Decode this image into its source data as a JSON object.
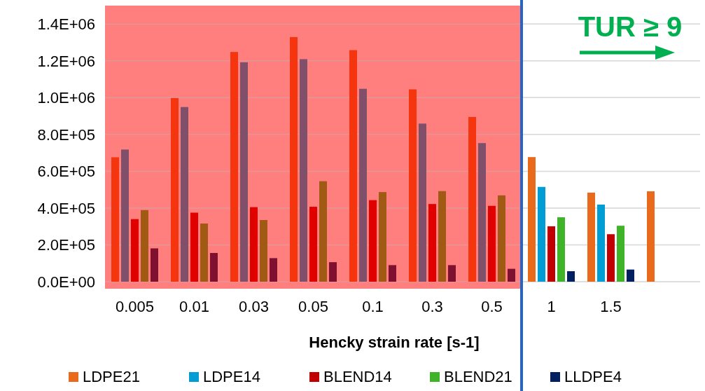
{
  "chart_data": {
    "type": "bar",
    "xlabel": "Hencky strain rate [s-1]",
    "categories": [
      "0.005",
      "0.01",
      "0.03",
      "0.05",
      "0.1",
      "0.3",
      "0.5",
      "1",
      "1.5",
      null
    ],
    "series": [
      {
        "name": "LDPE21",
        "color": "#e86a1a",
        "colors": [
          "#f4350d",
          "#f4350d",
          "#f4350d",
          "#f4350d",
          "#f4350d",
          "#f4350d",
          "#f4350d",
          "#e86a1a",
          "#e86a1a",
          "#e86a1a"
        ],
        "values": [
          676000,
          998000,
          1248000,
          1329000,
          1258000,
          1045000,
          895000,
          677000,
          484000,
          491000
        ]
      },
      {
        "name": "LDPE14",
        "color": "#009dd4",
        "colors": [
          "#804f6a",
          "#804f6a",
          "#804f6a",
          "#804f6a",
          "#804f6a",
          "#804f6a",
          "#804f6a",
          "#009dd4",
          "#009dd4",
          null
        ],
        "values": [
          718000,
          949000,
          1192000,
          1209000,
          1048000,
          859000,
          753000,
          515000,
          419000,
          null
        ]
      },
      {
        "name": "BLEND14",
        "color": "#c00000",
        "colors": [
          "#e00000",
          "#e00000",
          "#e00000",
          "#e00000",
          "#e00000",
          "#e00000",
          "#e00000",
          "#c00000",
          "#c00000",
          null
        ],
        "values": [
          340000,
          375000,
          405000,
          407000,
          443000,
          422000,
          412000,
          301000,
          258000,
          null
        ]
      },
      {
        "name": "BLEND21",
        "color": "#40b428",
        "colors": [
          "#a05a14",
          "#a05a14",
          "#a05a14",
          "#a05a14",
          "#a05a14",
          "#a05a14",
          "#a05a14",
          "#40b428",
          "#40b428",
          null
        ],
        "values": [
          389000,
          316000,
          335000,
          546000,
          487000,
          492000,
          469000,
          350000,
          304000,
          null
        ]
      },
      {
        "name": "LLDPE4",
        "color": "#00205f",
        "colors": [
          "#80102f",
          "#80102f",
          "#80102f",
          "#80102f",
          "#80102f",
          "#80102f",
          "#80102f",
          "#00205f",
          "#00205f",
          null
        ],
        "values": [
          181000,
          156000,
          128000,
          106000,
          90000,
          90000,
          70000,
          57000,
          66000,
          null
        ]
      }
    ],
    "ylim": [
      0,
      1500000
    ],
    "yticks": [
      {
        "value": 0,
        "label": "0.0E+00"
      },
      {
        "value": 200000,
        "label": "2.0E+05"
      },
      {
        "value": 400000,
        "label": "4.0E+05"
      },
      {
        "value": 600000,
        "label": "6.0E+05"
      },
      {
        "value": 800000,
        "label": "8.0E+05"
      },
      {
        "value": 1000000,
        "label": "1.0E+06"
      },
      {
        "value": 1200000,
        "label": "1.2E+06"
      },
      {
        "value": 1400000,
        "label": "1.4E+06"
      }
    ],
    "grid": "y",
    "legend": "bottom",
    "bands": [
      {
        "axis": "x",
        "from": "0.005",
        "to": "0.5",
        "color": "#ff0000"
      }
    ],
    "ref_lines": [
      {
        "axis": "x",
        "value": "0.5",
        "color": "#2564c8"
      }
    ],
    "annotations": [
      "TUR ≥ 9"
    ]
  }
}
